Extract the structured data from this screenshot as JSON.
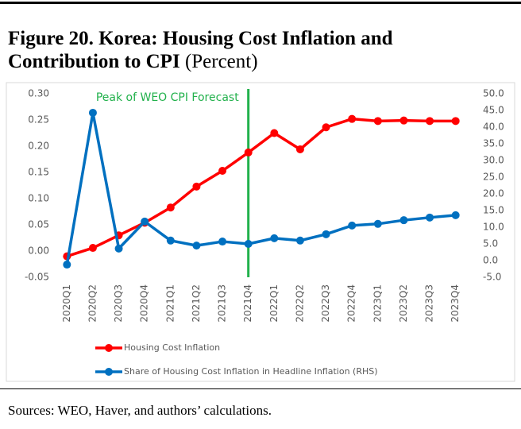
{
  "chart_data": {
    "type": "line",
    "title": "Figure 20. Korea: Housing Cost Inflation and Contribution to CPI",
    "subtitle": "(Percent)",
    "source": "Sources: WEO, Haver, and authors’ calculations.",
    "categories": [
      "2020Q1",
      "2020Q2",
      "2020Q3",
      "2020Q4",
      "2021Q1",
      "2021Q2",
      "2021Q3",
      "2021Q4",
      "2022Q1",
      "2022Q2",
      "2022Q3",
      "2022Q4",
      "2023Q1",
      "2023Q2",
      "2023Q3",
      "2023Q4"
    ],
    "series": [
      {
        "name": "Housing Cost Inflation",
        "color": "#ff0000",
        "values": [
          -0.01,
          0.006,
          0.03,
          0.054,
          0.083,
          0.123,
          0.153,
          0.188,
          0.225,
          0.194,
          0.236,
          0.252,
          0.248,
          0.249,
          0.248,
          0.248
        ]
      },
      {
        "name": "Share of Housing Cost Inflation in Headline Inflation (RHS)",
        "color": "#0070c0",
        "axis": "y2",
        "values": [
          -1.2,
          44.3,
          3.6,
          11.7,
          6.0,
          4.5,
          5.7,
          5.0,
          6.7,
          6.0,
          7.9,
          10.5,
          11.0,
          12.1,
          12.9,
          13.6
        ]
      }
    ],
    "ylim": [
      -0.05,
      0.3
    ],
    "yticks": [
      {
        "value": -0.05,
        "label": "-0.05"
      },
      {
        "value": 0,
        "label": "0.00"
      },
      {
        "value": 0.05,
        "label": "0.05"
      },
      {
        "value": 0.1,
        "label": "0.10"
      },
      {
        "value": 0.15,
        "label": "0.15"
      },
      {
        "value": 0.2,
        "label": "0.20"
      },
      {
        "value": 0.25,
        "label": "0.25"
      },
      {
        "value": 0.3,
        "label": "0.30"
      }
    ],
    "y2lim": [
      -5,
      50
    ],
    "y2ticks": [
      {
        "value": -5,
        "label": "-5.0"
      },
      {
        "value": 0,
        "label": "0.0"
      },
      {
        "value": 5,
        "label": "5.0"
      },
      {
        "value": 10,
        "label": "10.0"
      },
      {
        "value": 15,
        "label": "15.0"
      },
      {
        "value": 20,
        "label": "20.0"
      },
      {
        "value": 25,
        "label": "25.0"
      },
      {
        "value": 30,
        "label": "30.0"
      },
      {
        "value": 35,
        "label": "35.0"
      },
      {
        "value": 40,
        "label": "40.0"
      },
      {
        "value": 45,
        "label": "45.0"
      },
      {
        "value": 50,
        "label": "50.0"
      }
    ],
    "annotations": [
      {
        "text": "Peak of WEO CPI Forecast",
        "x": "2021Q4",
        "color": "#22b14c"
      }
    ]
  }
}
